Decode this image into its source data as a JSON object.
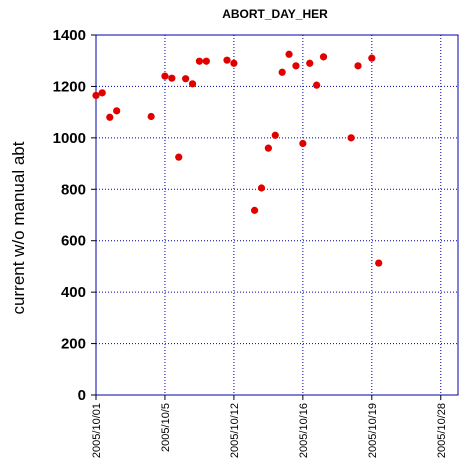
{
  "chart_data": {
    "type": "scatter",
    "title": "ABORT_DAY_HER",
    "xlabel": "",
    "ylabel": "current w/o manual abt",
    "ylim": [
      0,
      1400
    ],
    "yticks": [
      0,
      200,
      400,
      600,
      800,
      1000,
      1200,
      1400
    ],
    "xticks": [
      "2005/10/01",
      "2005/10/5",
      "2005/10/12",
      "2005/10/16",
      "2005/10/19",
      "2005/10/28"
    ],
    "xlim_index": [
      0,
      5.25
    ],
    "grid": true,
    "marker_color": "#e00000",
    "grid_color": "#0000aa",
    "series": [
      {
        "points": [
          {
            "x": 0.0,
            "y": 1165
          },
          {
            "x": 0.09,
            "y": 1175
          },
          {
            "x": 0.2,
            "y": 1080
          },
          {
            "x": 0.3,
            "y": 1105
          },
          {
            "x": 0.8,
            "y": 1083
          },
          {
            "x": 1.0,
            "y": 1240
          },
          {
            "x": 1.1,
            "y": 1232
          },
          {
            "x": 1.2,
            "y": 925
          },
          {
            "x": 1.3,
            "y": 1230
          },
          {
            "x": 1.4,
            "y": 1210
          },
          {
            "x": 1.5,
            "y": 1298
          },
          {
            "x": 1.6,
            "y": 1298
          },
          {
            "x": 1.9,
            "y": 1302
          },
          {
            "x": 2.0,
            "y": 1290
          },
          {
            "x": 2.3,
            "y": 718
          },
          {
            "x": 2.4,
            "y": 805
          },
          {
            "x": 2.5,
            "y": 960
          },
          {
            "x": 2.6,
            "y": 1010
          },
          {
            "x": 2.7,
            "y": 1255
          },
          {
            "x": 2.8,
            "y": 1325
          },
          {
            "x": 2.9,
            "y": 1280
          },
          {
            "x": 3.0,
            "y": 978
          },
          {
            "x": 3.1,
            "y": 1290
          },
          {
            "x": 3.2,
            "y": 1205
          },
          {
            "x": 3.3,
            "y": 1315
          },
          {
            "x": 3.7,
            "y": 1000
          },
          {
            "x": 3.8,
            "y": 1280
          },
          {
            "x": 4.0,
            "y": 1310
          },
          {
            "x": 4.1,
            "y": 513
          }
        ]
      }
    ]
  }
}
